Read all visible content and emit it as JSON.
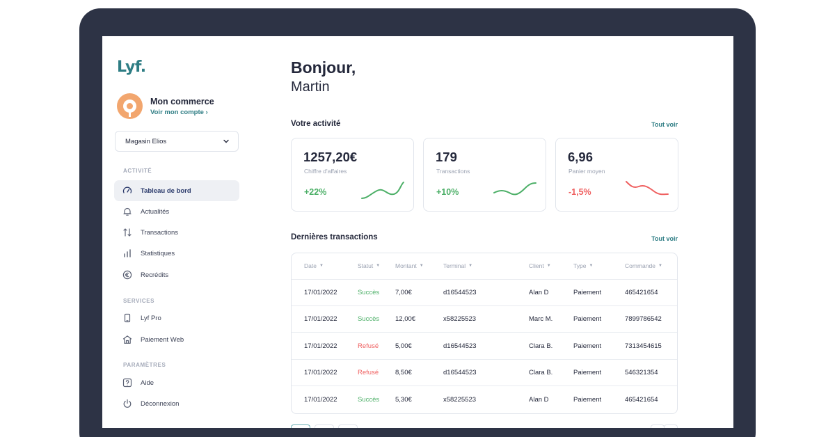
{
  "sidebar": {
    "logo": "Lyf.",
    "account": {
      "name": "Mon commerce",
      "link": "Voir mon compte ›"
    },
    "store_select": {
      "value": "Magasin Elios"
    },
    "sections": {
      "activite": "ACTIVITÉ",
      "services": "SERVICES",
      "parametres": "PARAMÈTRES"
    },
    "items": {
      "dashboard": "Tableau de bord",
      "news": "Actualités",
      "transactions": "Transactions",
      "stats": "Statistiques",
      "recredits": "Recrédits",
      "lyfpro": "Lyf Pro",
      "webpay": "Paiement Web",
      "help": "Aide",
      "logout": "Déconnexion"
    }
  },
  "greeting": {
    "line1": "Bonjour,",
    "line2": "Martin"
  },
  "activity": {
    "title": "Votre activité",
    "see_all": "Tout voir",
    "kpis": [
      {
        "value": "1257,20€",
        "label": "Chiffre d'affaires",
        "change": "+22%",
        "trend": "up",
        "color": "#4caf67"
      },
      {
        "value": "179",
        "label": "Transactions",
        "change": "+10%",
        "trend": "up",
        "color": "#4caf67"
      },
      {
        "value": "6,96",
        "label": "Panier moyen",
        "change": "-1,5%",
        "trend": "down",
        "color": "#ef5f5f"
      }
    ]
  },
  "transactions": {
    "title": "Dernières transactions",
    "see_all": "Tout voir",
    "columns": [
      "Date",
      "Statut",
      "Montant",
      "Terminal",
      "Client",
      "Type",
      "Commande"
    ],
    "rows": [
      [
        "17/01/2022",
        "Succès",
        "7,00€",
        "d16544523",
        "Alan D",
        "Paiement",
        "465421654"
      ],
      [
        "17/01/2022",
        "Succès",
        "12,00€",
        "x58225523",
        "Marc M.",
        "Paiement",
        "7899786542"
      ],
      [
        "17/01/2022",
        "Refusé",
        "5,00€",
        "d16544523",
        "Clara B.",
        "Paiement",
        "7313454615"
      ],
      [
        "17/01/2022",
        "Refusé",
        "8,50€",
        "d16544523",
        "Clara B.",
        "Paiement",
        "546321354"
      ],
      [
        "17/01/2022",
        "Succès",
        "5,30€",
        "x58225523",
        "Alan D",
        "Paiement",
        "465421654"
      ]
    ]
  },
  "colors": {
    "accent": "#2e7d84",
    "positive": "#4caf67",
    "negative": "#ef5f5f",
    "bezel": "#2d3345",
    "avatar": "#f2a66e"
  }
}
